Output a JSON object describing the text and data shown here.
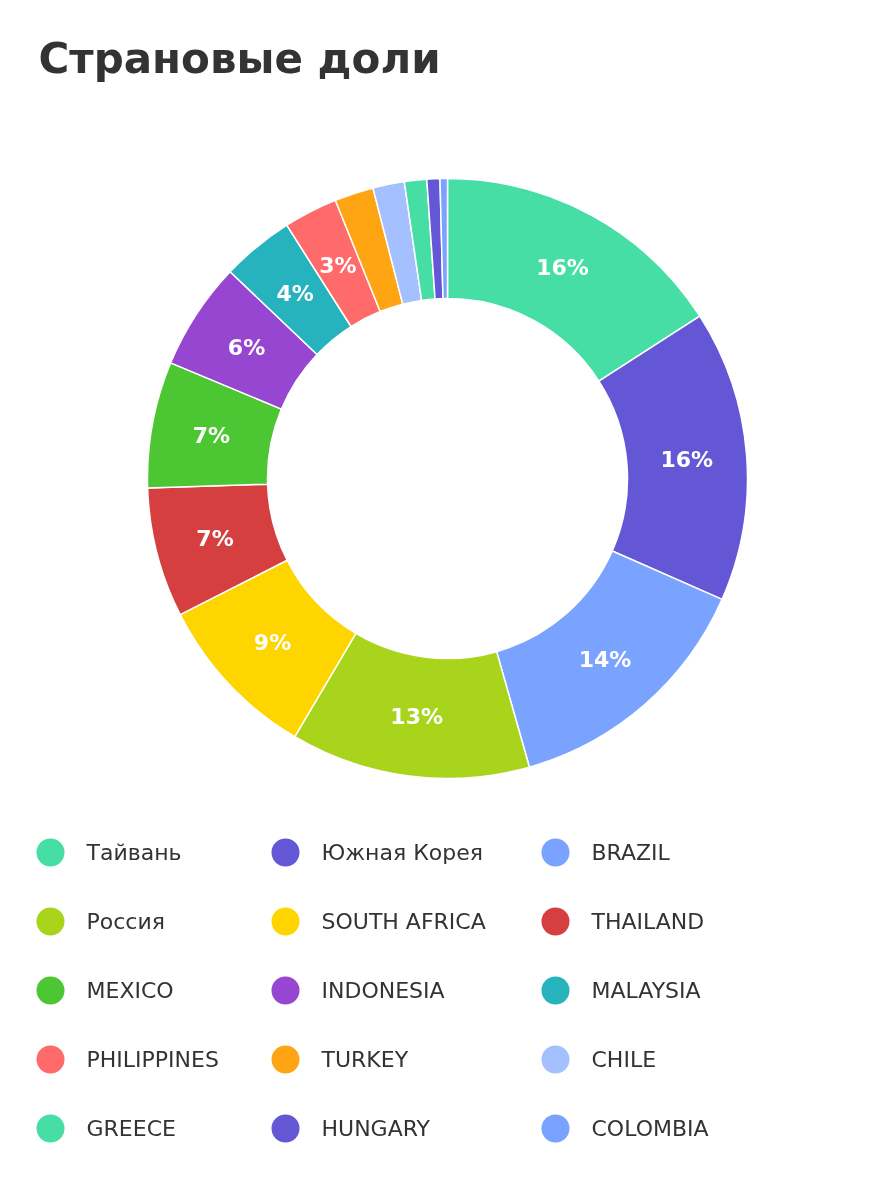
{
  "chart_data": {
    "type": "donut",
    "title": "Страновые доли",
    "categories": [
      "Тайвань",
      "Южная Корея",
      "BRAZIL",
      "Россия",
      "SOUTH AFRICA",
      "THAILAND",
      "MEXICO",
      "INDONESIA",
      "MALAYSIA",
      "PHILIPPINES",
      "TURKEY",
      "CHILE",
      "GREECE",
      "HUNGARY",
      "COLOMBIA"
    ],
    "values": [
      15.9,
      15.7,
      14.0,
      12.9,
      9.0,
      7.0,
      6.8,
      5.8,
      3.9,
      2.9,
      2.1,
      1.7,
      1.2,
      0.7,
      0.4
    ],
    "value_labels": [
      "16%",
      "16%",
      "14%",
      "13%",
      "9%",
      "7%",
      "7%",
      "6%",
      "4%",
      "3%",
      null,
      null,
      null,
      null,
      null
    ],
    "colors": [
      "#46dea4",
      "#6457d6",
      "#7aa3ff",
      "#a8d41c",
      "#ffd500",
      "#d63f3f",
      "#4dc633",
      "#9646d0",
      "#26b3bd",
      "#ff6b6b",
      "#ffa412",
      "#a5c0ff",
      "#46dea4",
      "#6457d6",
      "#7aa3ff"
    ],
    "legend": "bottom"
  }
}
